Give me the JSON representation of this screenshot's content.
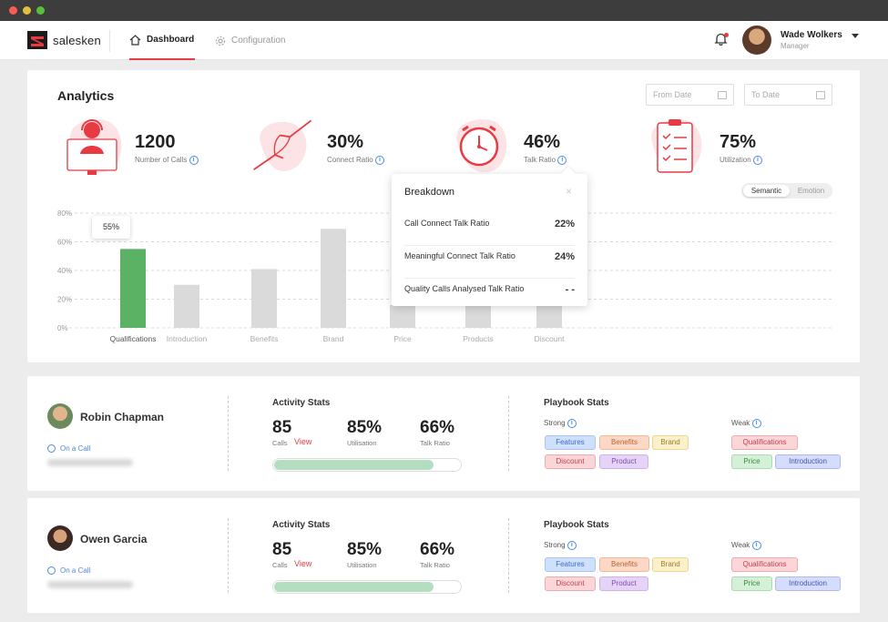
{
  "app": {
    "brand": "salesken"
  },
  "nav": {
    "tabs": [
      {
        "label": "Dashboard"
      },
      {
        "label": "Configuration"
      }
    ],
    "user": {
      "name": "Wade Wolkers",
      "role": "Manager"
    }
  },
  "analytics": {
    "title": "Analytics",
    "from_date_placeholder": "From Date",
    "to_date_placeholder": "To Date",
    "kpis": [
      {
        "value": "1200",
        "label": "Number of Calls"
      },
      {
        "value": "30%",
        "label": "Connect Ratio"
      },
      {
        "value": "46%",
        "label": "Talk Ratio"
      },
      {
        "value": "75%",
        "label": "Utilization"
      }
    ],
    "toggle": {
      "selected": "Semantic",
      "other": "Emotion"
    },
    "tooltip": "55%"
  },
  "chart_data": {
    "type": "bar",
    "categories": [
      "Qualifications",
      "Introduction",
      "Benefits",
      "Brand",
      "Price",
      "Products",
      "Discount"
    ],
    "values": [
      55,
      30,
      41,
      69,
      16,
      16,
      16
    ],
    "yticks": [
      "0%",
      "20%",
      "40%",
      "60%",
      "80%"
    ],
    "ylim": [
      0,
      80
    ],
    "highlight_index": 0,
    "colors": {
      "highlight": "#5bb264",
      "bar": "#dadada",
      "grid": "#d0d0d0"
    },
    "title": "",
    "xlabel": "",
    "ylabel": ""
  },
  "breakdown": {
    "title": "Breakdown",
    "close": "×",
    "rows": [
      {
        "label": "Call Connect Talk Ratio",
        "value": "22%"
      },
      {
        "label": "Meaningful Connect Talk Ratio",
        "value": "24%"
      },
      {
        "label": "Quality Calls Analysed Talk Ratio",
        "value": "- -"
      }
    ]
  },
  "agents": [
    {
      "name": "Robin Chapman",
      "status": "On a Call",
      "activity": {
        "title": "Activity Stats",
        "calls": "85",
        "calls_label": "Calls",
        "view": "View",
        "utilisation": "85%",
        "utilisation_label": "Utilisation",
        "talk_ratio": "66%",
        "talk_ratio_label": "Talk Ratio",
        "progress": 0.85
      },
      "playbook": {
        "title": "Playbook Stats",
        "strong_label": "Strong",
        "weak_label": "Weak",
        "strong": [
          "Features",
          "Benefits",
          "Brand",
          "Discount",
          "Product"
        ],
        "weak": [
          "Qualifications",
          "Price",
          "Introduction"
        ]
      }
    },
    {
      "name": "Owen Garcia",
      "status": "On a Call",
      "activity": {
        "title": "Activity Stats",
        "calls": "85",
        "calls_label": "Calls",
        "view": "View",
        "utilisation": "85%",
        "utilisation_label": "Utilisation",
        "talk_ratio": "66%",
        "talk_ratio_label": "Talk Ratio",
        "progress": 0.85
      },
      "playbook": {
        "title": "Playbook Stats",
        "strong_label": "Strong",
        "weak_label": "Weak",
        "strong": [
          "Features",
          "Benefits",
          "Brand",
          "Discount",
          "Product"
        ],
        "weak": [
          "Qualifications",
          "Price",
          "Introduction"
        ]
      }
    }
  ]
}
